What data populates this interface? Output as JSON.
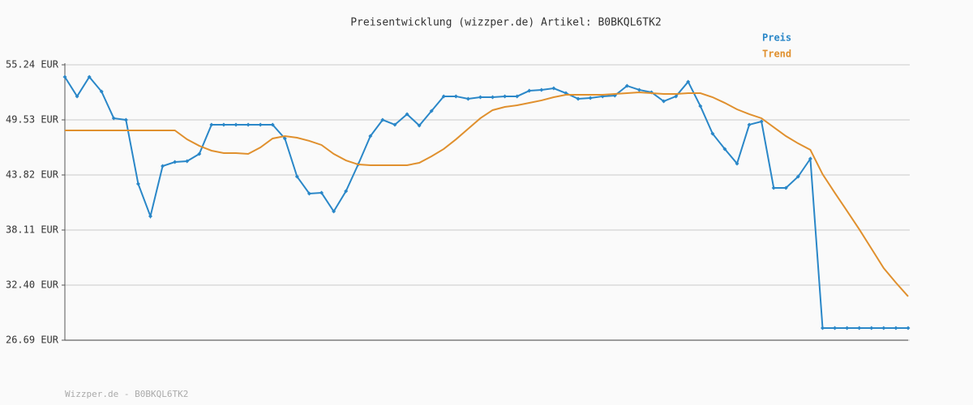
{
  "chart_data": {
    "type": "line",
    "title": "Preisentwicklung (wizzper.de) Artikel: B0BKQL6TK2",
    "footer": "Wizzper.de - B0BKQL6TK2",
    "categories": [
      null,
      null,
      null,
      null,
      null,
      null,
      null,
      null,
      null,
      null,
      null,
      null,
      null,
      null,
      null,
      null,
      null,
      null,
      null,
      null,
      null,
      null,
      null,
      null,
      null,
      null,
      null,
      null,
      null,
      null,
      null,
      null,
      null,
      null,
      null,
      null,
      null,
      null,
      null,
      null,
      null,
      null,
      null,
      null,
      null,
      null,
      null,
      null,
      null,
      null,
      null,
      null,
      null,
      null,
      null,
      null,
      null,
      null,
      null,
      null,
      null,
      null,
      null,
      null,
      null,
      null,
      null,
      null,
      null,
      null
    ],
    "series": [
      {
        "name": "Preis",
        "color": "#2a87c8",
        "markers": true,
        "values": [
          53.98,
          51.97,
          53.98,
          52.47,
          49.7,
          49.53,
          42.9,
          39.54,
          44.74,
          45.16,
          45.25,
          46.0,
          49.03,
          49.03,
          49.03,
          49.03,
          49.03,
          49.03,
          47.6,
          43.65,
          41.89,
          41.97,
          40.04,
          42.14,
          44.91,
          47.85,
          49.53,
          49.03,
          50.12,
          48.94,
          50.45,
          51.97,
          51.97,
          51.71,
          51.88,
          51.88,
          51.97,
          51.97,
          52.55,
          52.64,
          52.8,
          52.3,
          51.71,
          51.8,
          51.97,
          52.05,
          53.06,
          52.64,
          52.39,
          51.46,
          51.97,
          53.48,
          50.96,
          48.1,
          46.51,
          45.0,
          49.03,
          49.36,
          42.48,
          42.48,
          43.65,
          45.5,
          27.95,
          27.95,
          27.95,
          27.95,
          27.95,
          27.95,
          27.95,
          27.95
        ]
      },
      {
        "name": "Trend",
        "color": "#e0902e",
        "markers": false,
        "values": [
          48.44,
          48.44,
          48.44,
          48.44,
          48.44,
          48.44,
          48.44,
          48.44,
          48.44,
          48.44,
          47.51,
          46.84,
          46.34,
          46.09,
          46.09,
          46.0,
          46.67,
          47.6,
          47.85,
          47.68,
          47.35,
          46.93,
          46.0,
          45.33,
          44.91,
          44.83,
          44.83,
          44.83,
          44.83,
          45.08,
          45.75,
          46.51,
          47.51,
          48.61,
          49.7,
          50.54,
          50.87,
          51.04,
          51.29,
          51.55,
          51.88,
          52.13,
          52.13,
          52.13,
          52.13,
          52.22,
          52.3,
          52.39,
          52.3,
          52.22,
          52.22,
          52.3,
          52.3,
          51.88,
          51.29,
          50.62,
          50.12,
          49.7,
          48.77,
          47.85,
          47.09,
          46.42,
          43.9,
          41.97,
          40.09,
          38.19,
          36.18,
          34.16,
          32.65,
          31.23
        ]
      }
    ],
    "ylim": [
      26.69,
      55.24
    ],
    "yticks": [
      {
        "value": 26.69,
        "label": "26.69 EUR"
      },
      {
        "value": 32.4,
        "label": "32.40 EUR"
      },
      {
        "value": 38.11,
        "label": "38.11 EUR"
      },
      {
        "value": 43.82,
        "label": "43.82 EUR"
      },
      {
        "value": 49.53,
        "label": "49.53 EUR"
      },
      {
        "value": 55.24,
        "label": "55.24 EUR"
      }
    ],
    "grid": true
  }
}
